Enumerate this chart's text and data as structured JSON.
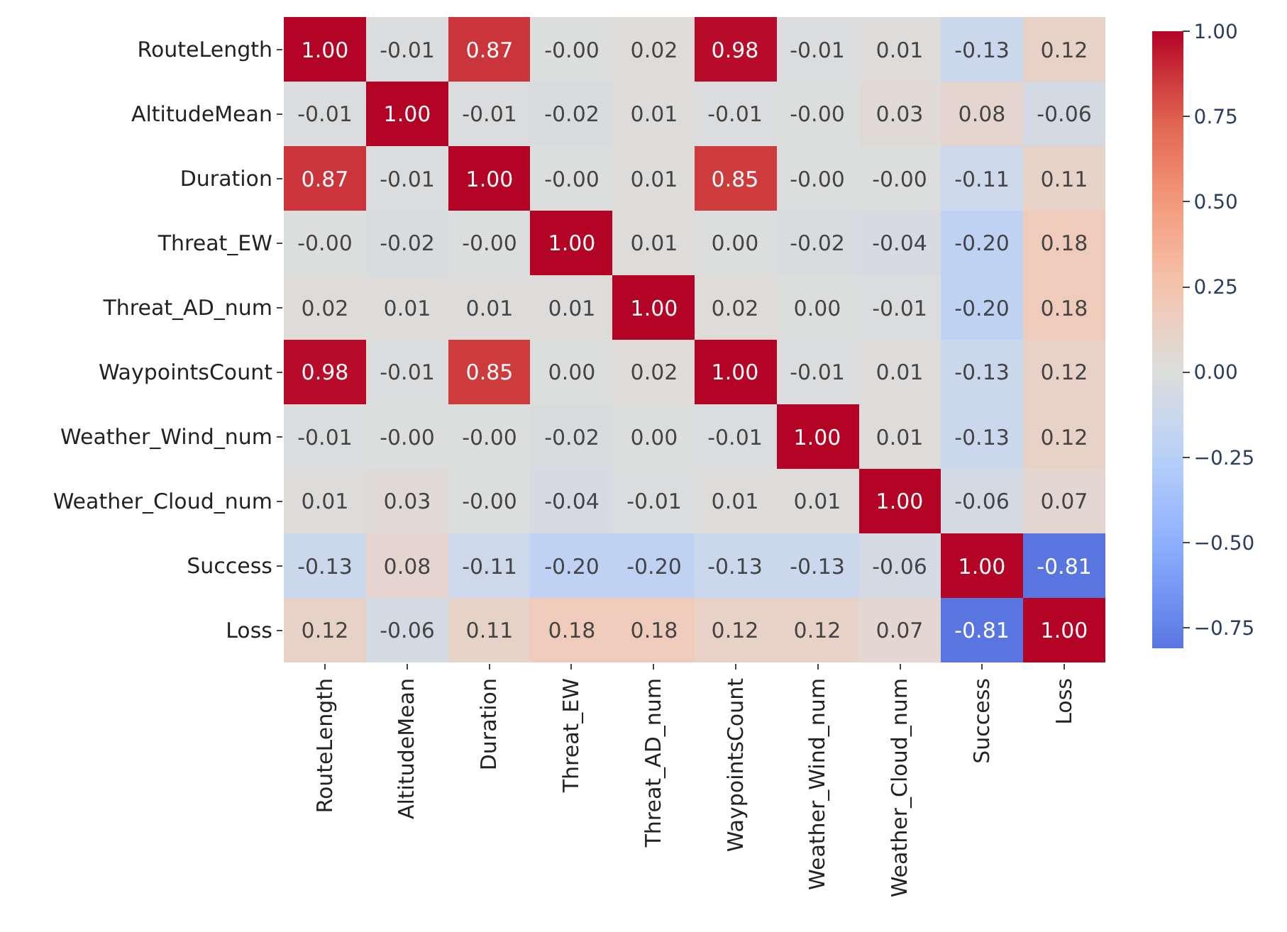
{
  "chart_data": {
    "type": "heatmap",
    "categories": [
      "RouteLength",
      "AltitudeMean",
      "Duration",
      "Threat_EW",
      "Threat_AD_num",
      "WaypointsCount",
      "Weather_Wind_num",
      "Weather_Cloud_num",
      "Success",
      "Loss"
    ],
    "y_categories": [
      "RouteLength",
      "AltitudeMean",
      "Duration",
      "Threat_EW",
      "Threat_AD_num",
      "WaypointsCount",
      "Weather_Wind_num",
      "Weather_Cloud_num",
      "Success",
      "Loss"
    ],
    "cells": [
      [
        1.0,
        -0.01,
        0.87,
        -0.0,
        0.02,
        0.98,
        -0.01,
        0.01,
        -0.13,
        0.12
      ],
      [
        -0.01,
        1.0,
        -0.01,
        -0.02,
        0.01,
        -0.01,
        -0.0,
        0.03,
        0.08,
        -0.06
      ],
      [
        0.87,
        -0.01,
        1.0,
        -0.0,
        0.01,
        0.85,
        -0.0,
        -0.0,
        -0.11,
        0.11
      ],
      [
        -0.0,
        -0.02,
        -0.0,
        1.0,
        0.01,
        0.0,
        -0.02,
        -0.04,
        -0.2,
        0.18
      ],
      [
        0.02,
        0.01,
        0.01,
        0.01,
        1.0,
        0.02,
        0.0,
        -0.01,
        -0.2,
        0.18
      ],
      [
        0.98,
        -0.01,
        0.85,
        0.0,
        0.02,
        1.0,
        -0.01,
        0.01,
        -0.13,
        0.12
      ],
      [
        -0.01,
        -0.0,
        -0.0,
        -0.02,
        0.0,
        -0.01,
        1.0,
        0.01,
        -0.13,
        0.12
      ],
      [
        0.01,
        0.03,
        -0.0,
        -0.04,
        -0.01,
        0.01,
        0.01,
        1.0,
        -0.06,
        0.07
      ],
      [
        -0.13,
        0.08,
        -0.11,
        -0.2,
        -0.2,
        -0.13,
        -0.13,
        -0.06,
        1.0,
        -0.81
      ],
      [
        0.12,
        -0.06,
        0.11,
        0.18,
        0.18,
        0.12,
        0.12,
        0.07,
        -0.81,
        1.0
      ]
    ],
    "cell_labels": [
      [
        "1.00",
        "-0.01",
        "0.87",
        "-0.00",
        "0.02",
        "0.98",
        "-0.01",
        "0.01",
        "-0.13",
        "0.12"
      ],
      [
        "-0.01",
        "1.00",
        "-0.01",
        "-0.02",
        "0.01",
        "-0.01",
        "-0.00",
        "0.03",
        "0.08",
        "-0.06"
      ],
      [
        "0.87",
        "-0.01",
        "1.00",
        "-0.00",
        "0.01",
        "0.85",
        "-0.00",
        "-0.00",
        "-0.11",
        "0.11"
      ],
      [
        "-0.00",
        "-0.02",
        "-0.00",
        "1.00",
        "0.01",
        "0.00",
        "-0.02",
        "-0.04",
        "-0.20",
        "0.18"
      ],
      [
        "0.02",
        "0.01",
        "0.01",
        "0.01",
        "1.00",
        "0.02",
        "0.00",
        "-0.01",
        "-0.20",
        "0.18"
      ],
      [
        "0.98",
        "-0.01",
        "0.85",
        "0.00",
        "0.02",
        "1.00",
        "-0.01",
        "0.01",
        "-0.13",
        "0.12"
      ],
      [
        "-0.01",
        "-0.00",
        "-0.00",
        "-0.02",
        "0.00",
        "-0.01",
        "1.00",
        "0.01",
        "-0.13",
        "0.12"
      ],
      [
        "0.01",
        "0.03",
        "-0.00",
        "-0.04",
        "-0.01",
        "0.01",
        "0.01",
        "1.00",
        "-0.06",
        "0.07"
      ],
      [
        "-0.13",
        "0.08",
        "-0.11",
        "-0.20",
        "-0.20",
        "-0.13",
        "-0.13",
        "-0.06",
        "1.00",
        "-0.81"
      ],
      [
        "0.12",
        "-0.06",
        "0.11",
        "0.18",
        "0.18",
        "0.12",
        "0.12",
        "0.07",
        "-0.81",
        "1.00"
      ]
    ],
    "clim": [
      -0.81,
      1.0
    ],
    "cticks": [
      {
        "value": -0.75,
        "label": "−0.75"
      },
      {
        "value": -0.5,
        "label": "−0.50"
      },
      {
        "value": -0.25,
        "label": "−0.25"
      },
      {
        "value": 0,
        "label": "0.00"
      },
      {
        "value": 0.25,
        "label": "0.25"
      },
      {
        "value": 0.5,
        "label": "0.50"
      },
      {
        "value": 0.75,
        "label": "0.75"
      },
      {
        "value": 1.0,
        "label": "1.00"
      }
    ]
  }
}
